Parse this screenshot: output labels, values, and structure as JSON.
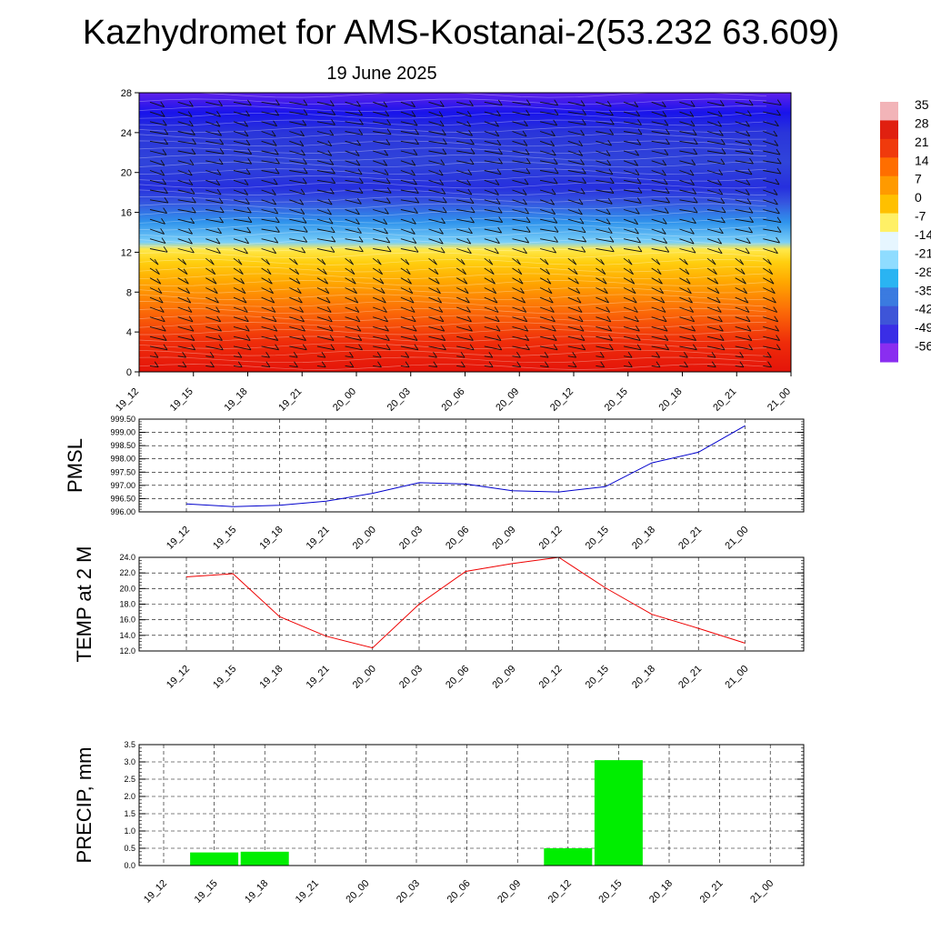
{
  "title": "Kazhydromet for AMS-Kostanai-2(53.232 63.609)",
  "subtitle": "19 June 2025",
  "chart_data": [
    {
      "type": "heatmap",
      "name": "vertical cross-section",
      "x_ticks": [
        "19_12",
        "19_15",
        "19_18",
        "19_21",
        "20_00",
        "20_03",
        "20_06",
        "20_09",
        "20_12",
        "20_15",
        "20_18",
        "20_21",
        "21_00"
      ],
      "y_ticks": [
        0,
        4,
        8,
        12,
        16,
        20,
        24,
        28
      ],
      "ylim": [
        0,
        28
      ],
      "colorbar_labels": [
        "35",
        "28",
        "21",
        "14",
        "7",
        "0",
        "-7",
        "-14",
        "-21",
        "-28",
        "-35",
        "-42",
        "-49",
        "-56"
      ],
      "colorbar_colors": [
        "#f2b4b8",
        "#e02010",
        "#f03a0c",
        "#ff6e00",
        "#ff9a00",
        "#ffc000",
        "#fff066",
        "#e6f6ff",
        "#8fdcff",
        "#2ab4f2",
        "#3b7be0",
        "#3e55d8",
        "#3a2ee6",
        "#8a2ef0"
      ],
      "levels": [
        {
          "z": 0,
          "value": 28
        },
        {
          "z": 3,
          "value": 22
        },
        {
          "z": 6,
          "value": 14
        },
        {
          "z": 9,
          "value": 6
        },
        {
          "z": 11,
          "value": 1
        },
        {
          "z": 12.3,
          "value": -3
        },
        {
          "z": 13,
          "value": -24
        },
        {
          "z": 15,
          "value": -33
        },
        {
          "z": 17,
          "value": -41
        },
        {
          "z": 18.5,
          "value": -46
        },
        {
          "z": 21,
          "value": -43
        },
        {
          "z": 24,
          "value": -45
        },
        {
          "z": 26,
          "value": -50
        },
        {
          "z": 28,
          "value": -54
        }
      ],
      "wind_barbs": "grid of wind barbs"
    },
    {
      "type": "line",
      "ylabel": "PMSL",
      "x": [
        "19_12",
        "19_15",
        "19_18",
        "19_21",
        "20_00",
        "20_03",
        "20_06",
        "20_09",
        "20_12",
        "20_15",
        "20_18",
        "20_21",
        "21_00"
      ],
      "series": [
        {
          "color": "#0000cc",
          "values": [
            996.3,
            996.2,
            996.25,
            996.4,
            996.7,
            997.1,
            997.05,
            996.8,
            996.75,
            996.95,
            997.85,
            998.25,
            999.25
          ]
        }
      ],
      "ylim": [
        996.0,
        999.5
      ],
      "y_ticks": [
        "996.00",
        "996.50",
        "997.00",
        "997.50",
        "998.00",
        "998.50",
        "999.00",
        "999.50"
      ],
      "grid": true
    },
    {
      "type": "line",
      "ylabel": "TEMP at 2 M",
      "x": [
        "19_12",
        "19_15",
        "19_18",
        "19_21",
        "20_00",
        "20_03",
        "20_06",
        "20_09",
        "20_12",
        "20_15",
        "20_18",
        "20_21",
        "21_00"
      ],
      "series": [
        {
          "color": "#ee0000",
          "values": [
            21.5,
            21.9,
            16.4,
            13.9,
            12.4,
            18.0,
            22.2,
            23.2,
            24.0,
            20.1,
            16.7,
            14.9,
            13.0
          ]
        }
      ],
      "ylim": [
        12.0,
        24.0
      ],
      "y_ticks": [
        "12.0",
        "14.0",
        "16.0",
        "18.0",
        "20.0",
        "22.0",
        "24.0"
      ],
      "grid": true
    },
    {
      "type": "bar",
      "ylabel": "PRECIP, mm",
      "categories": [
        "19_12",
        "19_15",
        "19_18",
        "19_21",
        "20_00",
        "20_03",
        "20_06",
        "20_09",
        "20_12",
        "20_15",
        "20_18",
        "20_21",
        "21_00"
      ],
      "series": [
        {
          "color": "#00ee00",
          "values": [
            0,
            0.38,
            0.4,
            0,
            0,
            0,
            0,
            0,
            0.5,
            3.05,
            0,
            0,
            0
          ]
        }
      ],
      "ylim": [
        0,
        3.5
      ],
      "y_ticks": [
        "0.0",
        "0.5",
        "1.0",
        "1.5",
        "2.0",
        "2.5",
        "3.0",
        "3.5"
      ],
      "grid": true
    }
  ]
}
